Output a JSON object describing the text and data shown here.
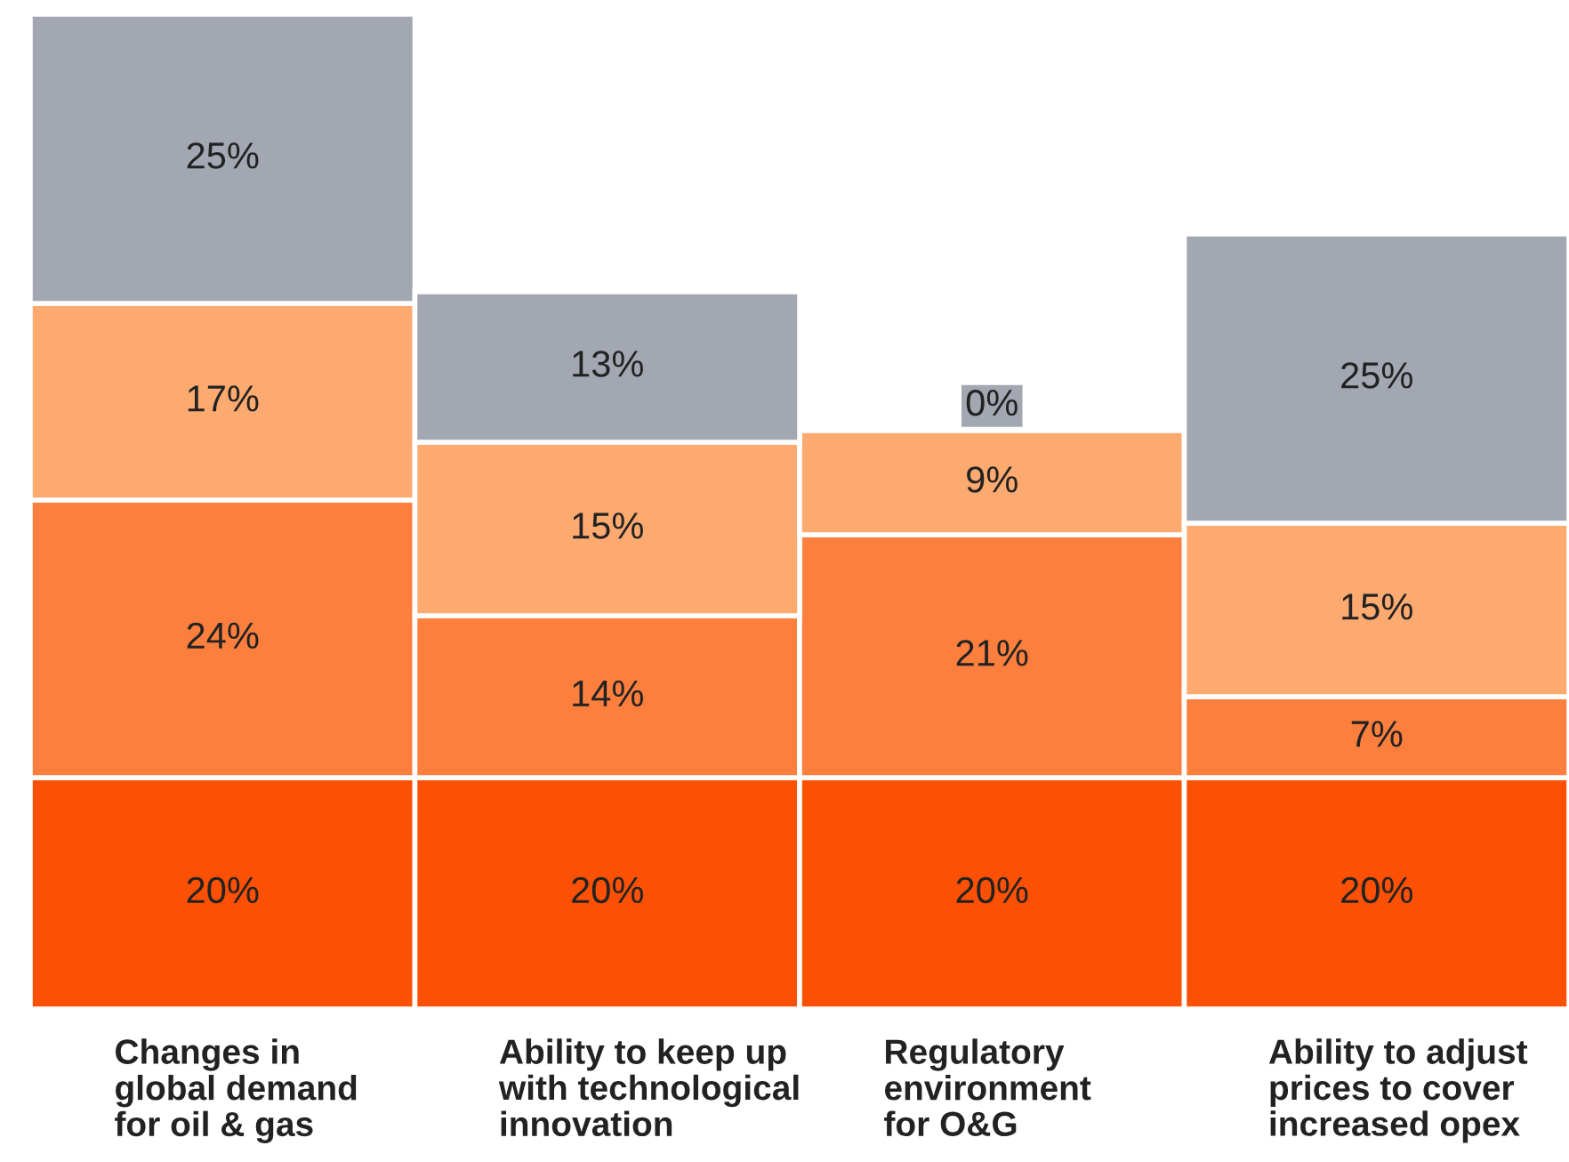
{
  "chart_data": {
    "type": "bar",
    "stacked": true,
    "categories": [
      "Changes in\nglobal demand\nfor oil & gas",
      "Ability to keep up\nwith technological\ninnovation",
      "Regulatory\nenvironment\nfor O&G",
      "Ability to adjust\nprices to cover\nincreased opex"
    ],
    "series": [
      {
        "color": "#fc5104",
        "values": [
          20,
          20,
          20,
          20
        ],
        "value_labels": [
          "20%",
          "20%",
          "20%",
          "20%"
        ]
      },
      {
        "color": "#fd7f3e",
        "values": [
          24,
          14,
          21,
          7
        ],
        "value_labels": [
          "24%",
          "14%",
          "21%",
          "7%"
        ]
      },
      {
        "color": "#fdaa70",
        "values": [
          17,
          15,
          9,
          15
        ],
        "value_labels": [
          "17%",
          "15%",
          "9%",
          "15%"
        ]
      },
      {
        "color": "#a2a7b2",
        "values": [
          25,
          13,
          0,
          25
        ],
        "value_labels": [
          "25%",
          "13%",
          "0%",
          "25%"
        ]
      }
    ],
    "legend": false
  }
}
